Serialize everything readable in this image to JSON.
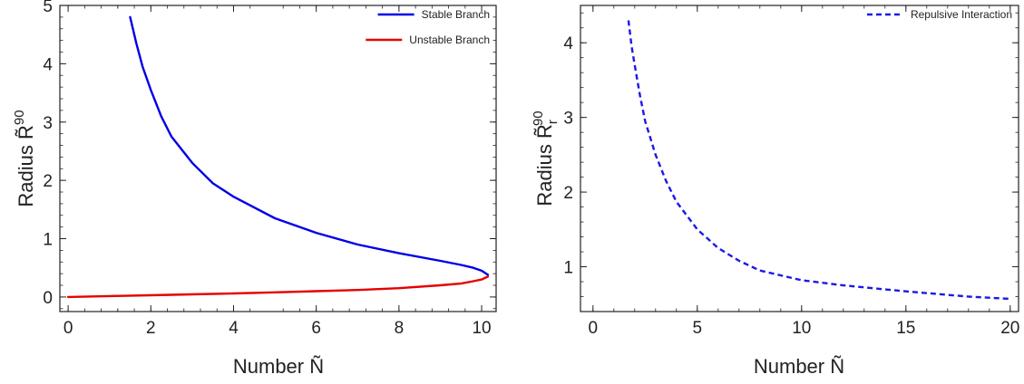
{
  "chart_data": [
    {
      "type": "line",
      "xlabel": "Number Ñ",
      "ylabel": "Radius R̃",
      "ylabel_sup": "90",
      "xlim": [
        -0.2,
        10.35
      ],
      "ylim": [
        -0.25,
        5.0
      ],
      "xticks": [
        "0",
        "2",
        "4",
        "6",
        "8",
        "10"
      ],
      "yticks": [
        "0",
        "1",
        "2",
        "3",
        "4",
        "5"
      ],
      "legend_position": "top-right",
      "series": [
        {
          "name": "Stable Branch",
          "color": "#0000e6",
          "style": "solid",
          "x": [
            1.5,
            1.65,
            1.8,
            2.0,
            2.25,
            2.5,
            3.0,
            3.5,
            4.0,
            5.0,
            6.0,
            7.0,
            8.0,
            9.0,
            9.5,
            9.8,
            10.0,
            10.15
          ],
          "y": [
            4.8,
            4.35,
            3.95,
            3.55,
            3.1,
            2.75,
            2.3,
            1.95,
            1.72,
            1.35,
            1.1,
            0.9,
            0.75,
            0.62,
            0.55,
            0.5,
            0.45,
            0.38
          ]
        },
        {
          "name": "Unstable Branch",
          "color": "#e60000",
          "style": "solid",
          "x": [
            0.0,
            1.0,
            2.0,
            3.0,
            4.0,
            5.0,
            6.0,
            7.0,
            8.0,
            9.0,
            9.5,
            9.8,
            10.0,
            10.15
          ],
          "y": [
            0.0,
            0.015,
            0.03,
            0.045,
            0.06,
            0.08,
            0.1,
            0.12,
            0.15,
            0.2,
            0.23,
            0.27,
            0.3,
            0.35
          ]
        }
      ]
    },
    {
      "type": "line",
      "xlabel": "Number Ñ",
      "ylabel": "Radius R̃",
      "ylabel_sup": "90",
      "ylabel_sub": "r",
      "xlim": [
        -0.6,
        20.4
      ],
      "ylim": [
        0.4,
        4.5
      ],
      "xticks": [
        "0",
        "5",
        "10",
        "15",
        "20"
      ],
      "yticks": [
        "1",
        "2",
        "3",
        "4"
      ],
      "legend_position": "top-right",
      "series": [
        {
          "name": "Repulsive Interaction",
          "color": "#1a1ae6",
          "style": "dashed",
          "x": [
            1.7,
            1.85,
            2.0,
            2.25,
            2.5,
            3.0,
            3.5,
            4.0,
            5.0,
            6.0,
            7.0,
            8.0,
            10.0,
            12.0,
            15.0,
            18.0,
            20.0
          ],
          "y": [
            4.3,
            3.95,
            3.7,
            3.3,
            2.95,
            2.5,
            2.15,
            1.87,
            1.5,
            1.25,
            1.08,
            0.95,
            0.82,
            0.75,
            0.67,
            0.6,
            0.57
          ]
        }
      ]
    }
  ]
}
